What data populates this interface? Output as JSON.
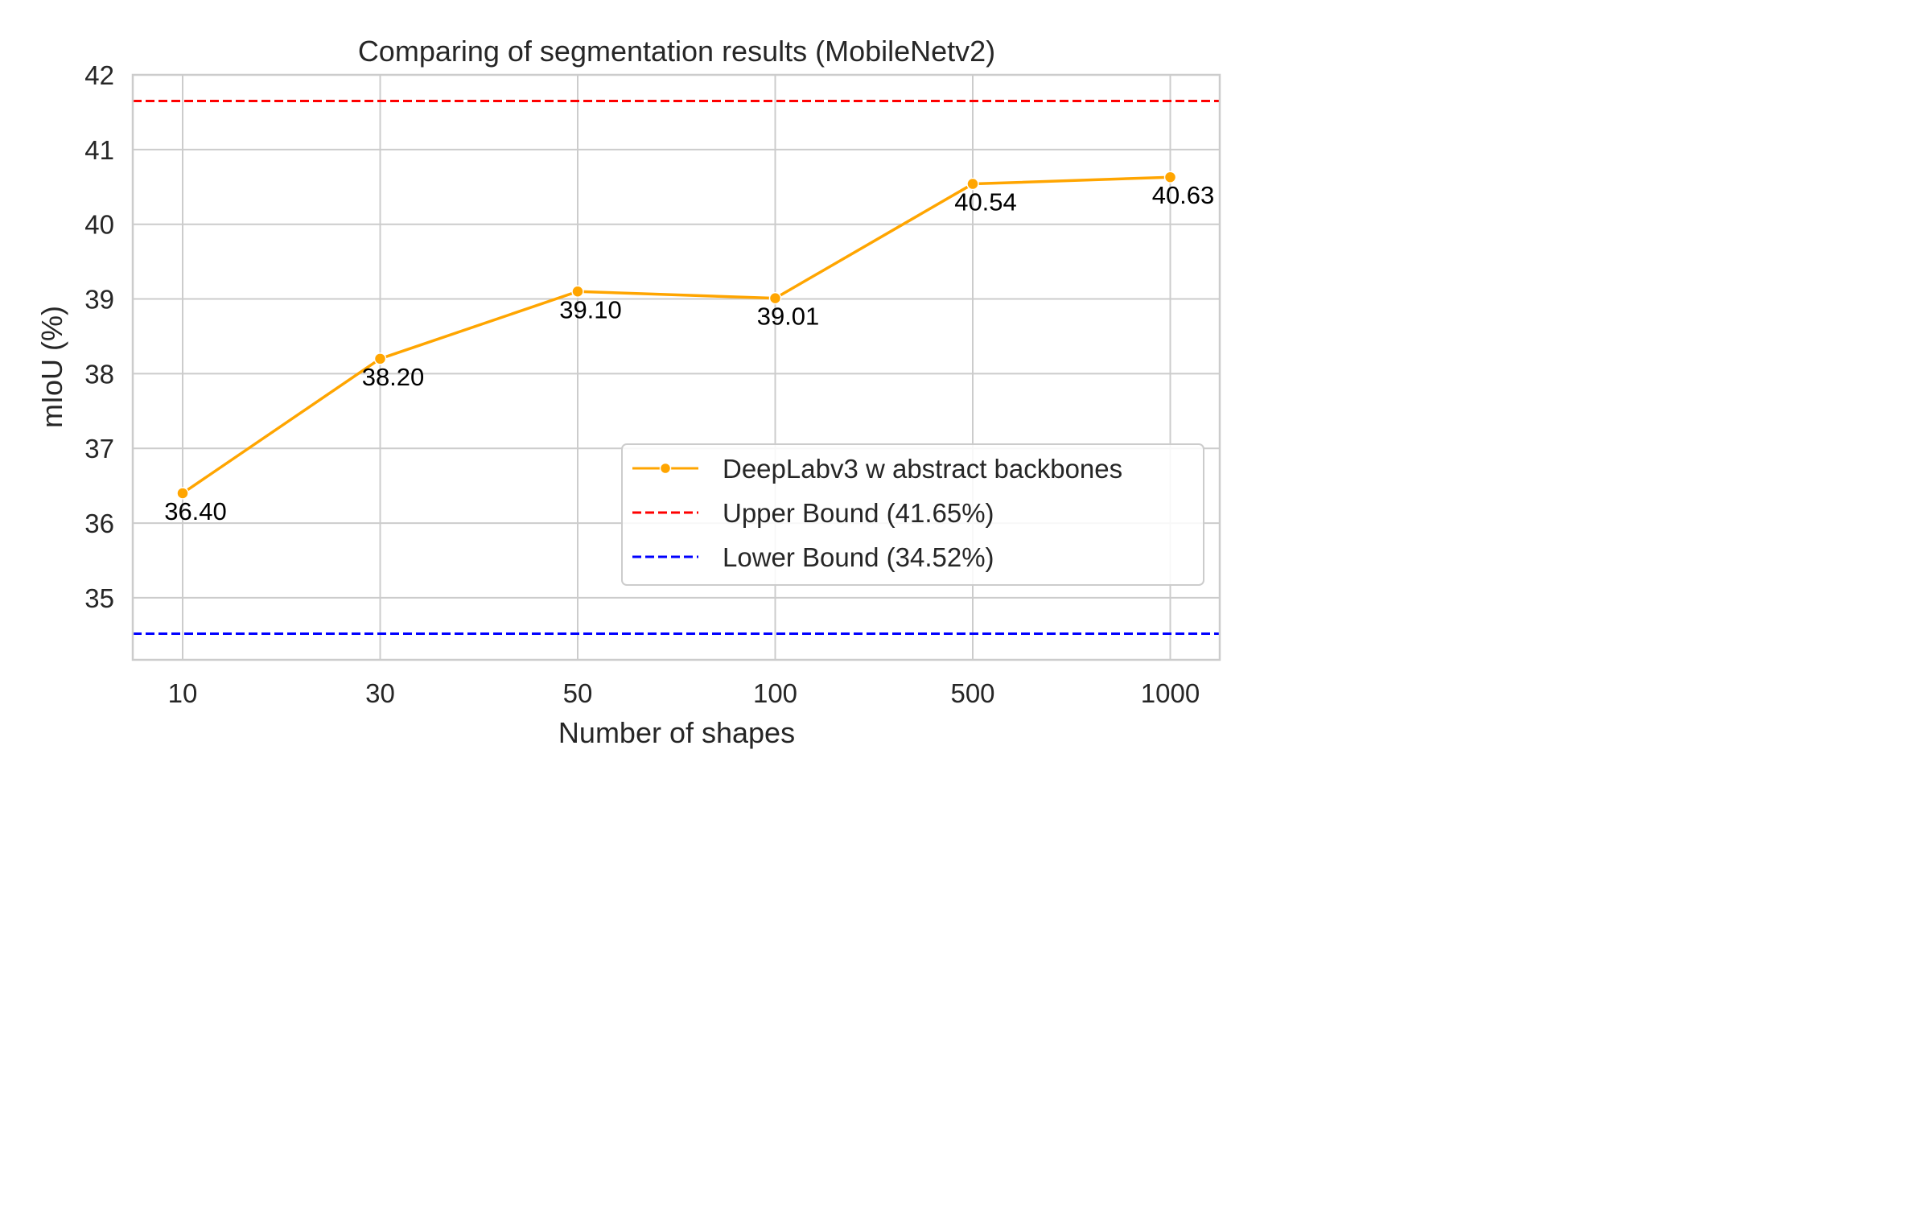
{
  "chart_data": {
    "type": "line",
    "title": "Comparing of segmentation results (MobileNetv2)",
    "xlabel": "Number of shapes",
    "ylabel": "mIoU (%)",
    "categories": [
      "10",
      "30",
      "50",
      "100",
      "500",
      "1000"
    ],
    "series": [
      {
        "name": "DeepLabv3 w abstract backbones",
        "values": [
          36.4,
          38.2,
          39.1,
          39.01,
          40.54,
          40.63
        ],
        "labels": [
          "36.40",
          "38.20",
          "39.10",
          "39.01",
          "40.54",
          "40.63"
        ],
        "color": "#FFA500",
        "marker": "circle"
      }
    ],
    "reference_lines": [
      {
        "name": "Upper Bound (41.65%)",
        "value": 41.65,
        "color": "#FF0000",
        "style": "dashed"
      },
      {
        "name": "Lower Bound (34.52%)",
        "value": 34.52,
        "color": "#0000FF",
        "style": "dashed"
      }
    ],
    "yticks": [
      "35",
      "36",
      "37",
      "38",
      "39",
      "40",
      "41",
      "42"
    ],
    "ylim": [
      34.17,
      42.0
    ],
    "grid": true,
    "legend_position": "lower-right"
  }
}
